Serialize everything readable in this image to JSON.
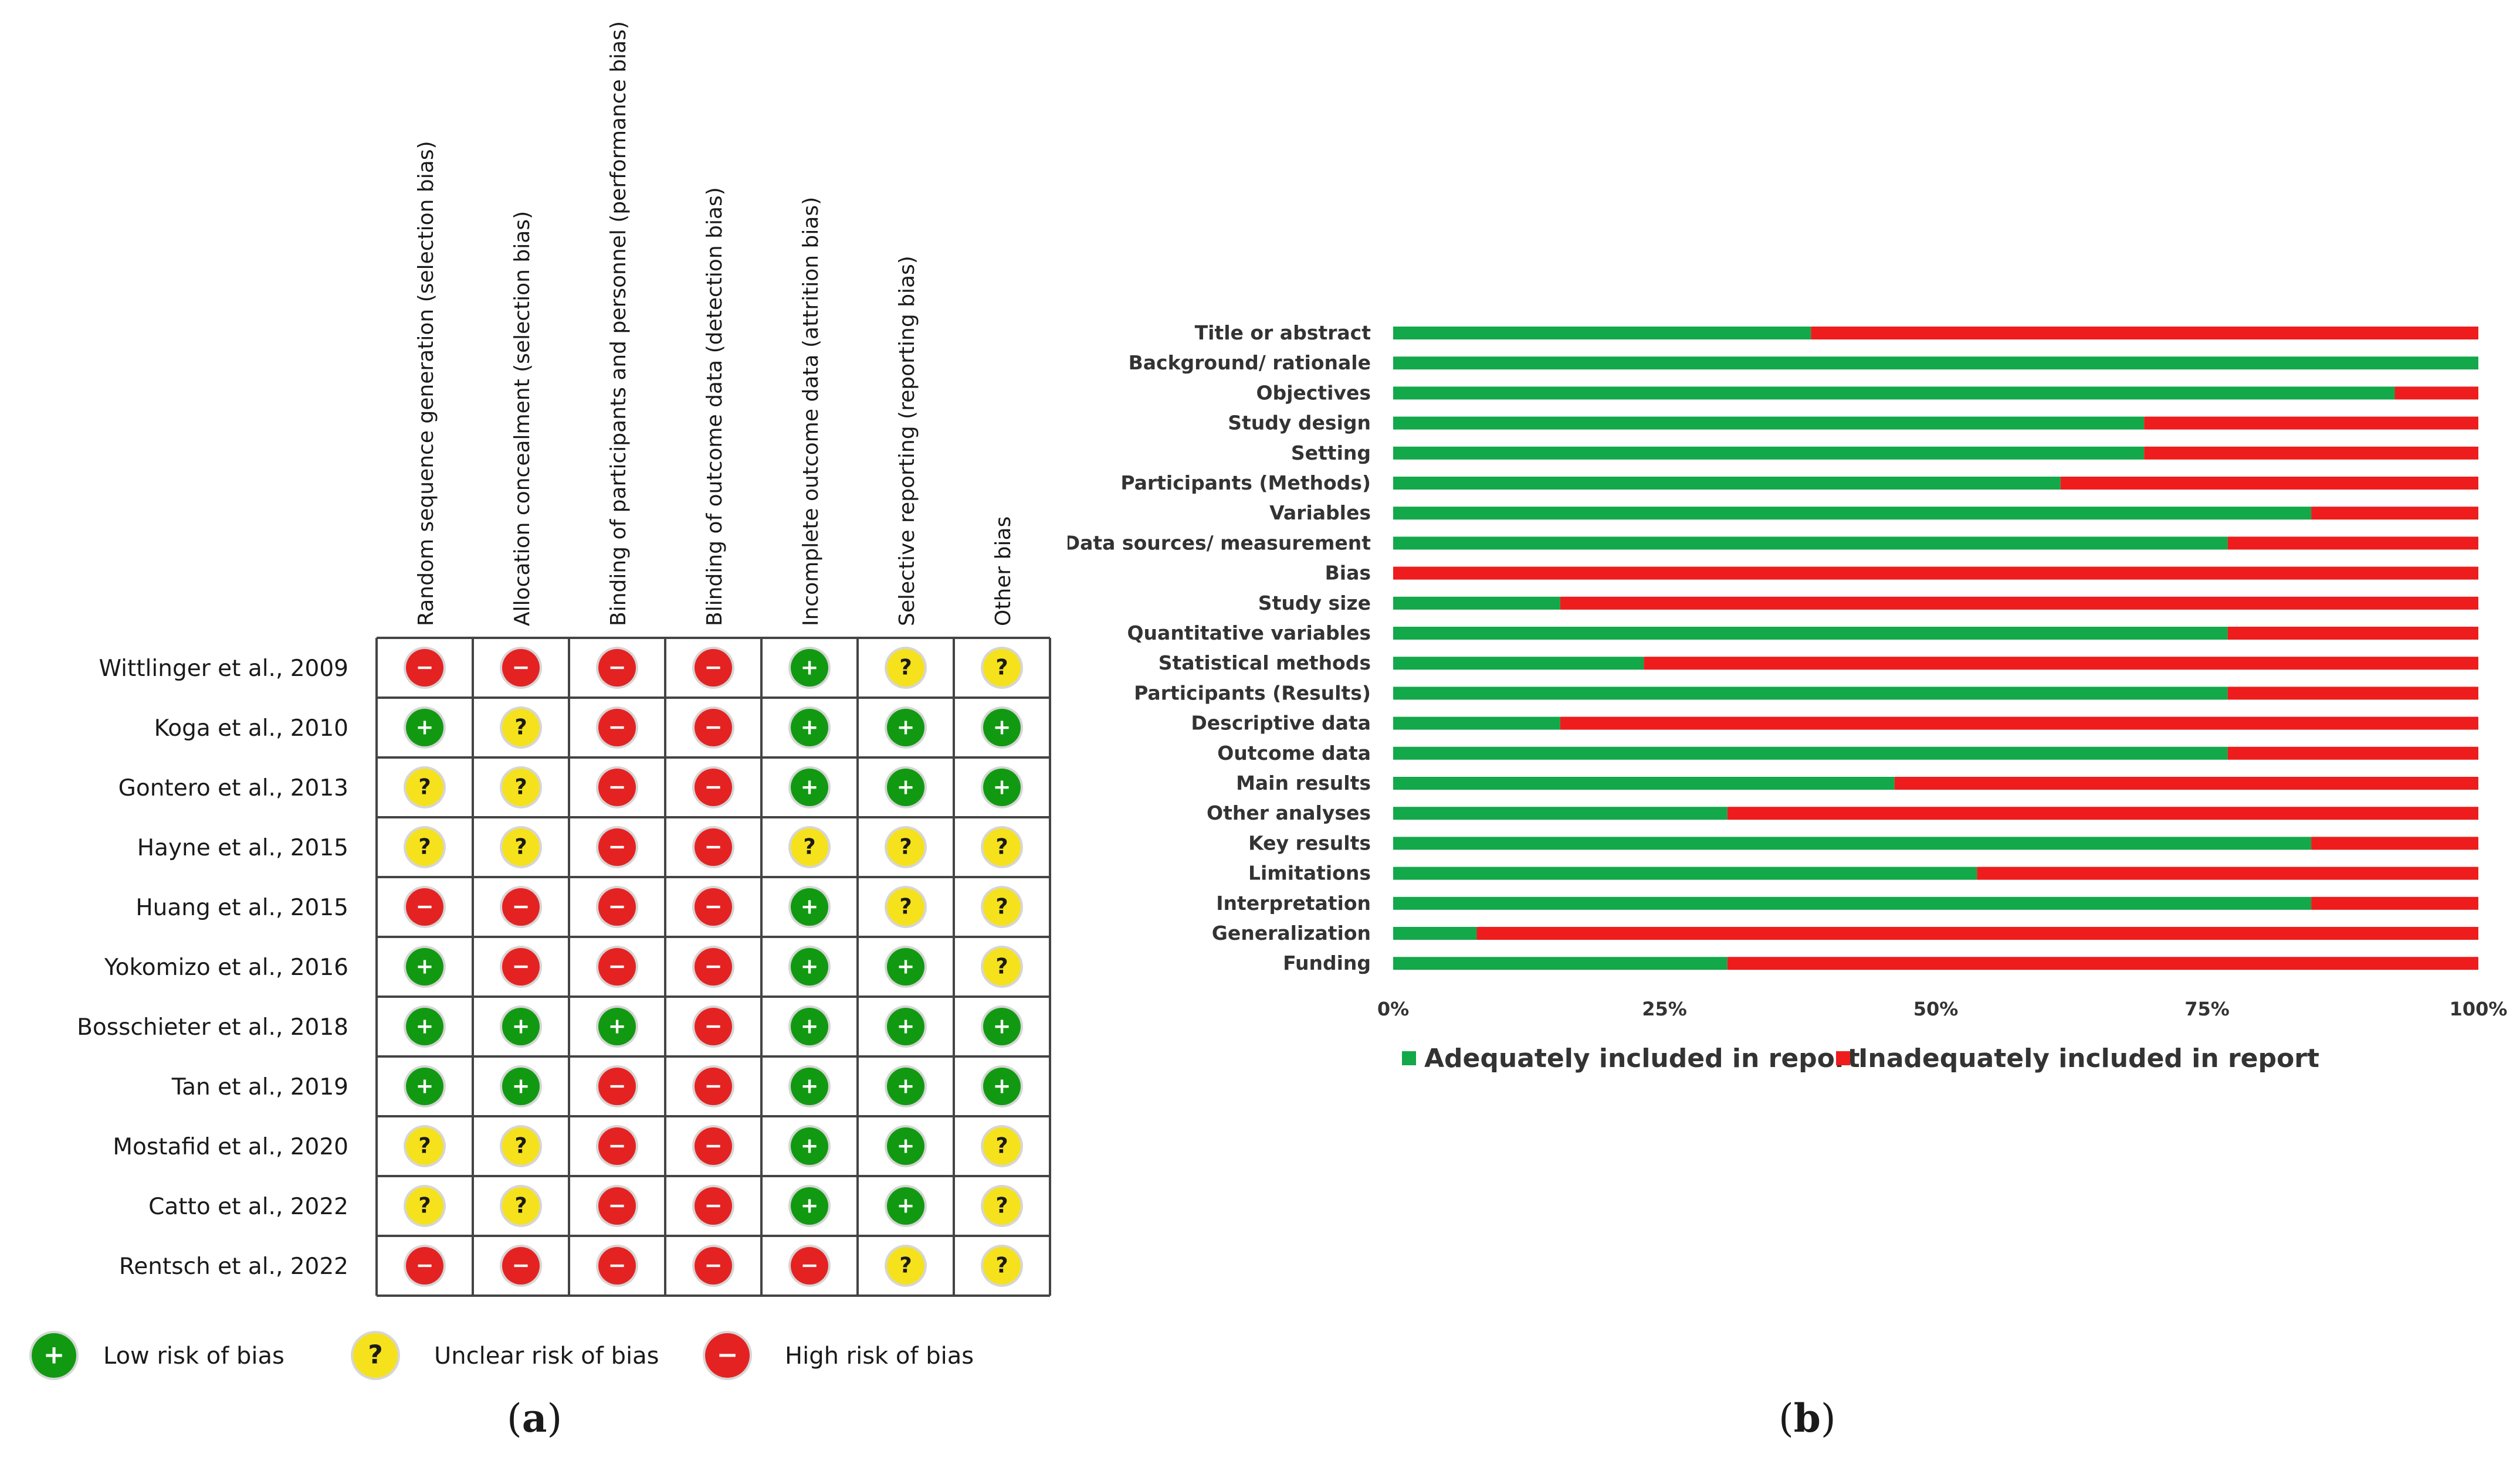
{
  "panel_a": {
    "columns": [
      "Random sequence  generation (selection bias)",
      "Allocation concealment (selection bias)",
      "Binding of participants and personnel (performance bias)",
      "Blinding of outcome data (detection bias)",
      "Incomplete outcome data (attrition bias)",
      "Selective reporting (reporting bias)",
      "Other bias"
    ],
    "studies": [
      {
        "name": "Wittlinger et al., 2009",
        "ratings": [
          "high",
          "high",
          "high",
          "high",
          "low",
          "unclear",
          "unclear"
        ]
      },
      {
        "name": "Koga et al., 2010",
        "ratings": [
          "low",
          "unclear",
          "high",
          "high",
          "low",
          "low",
          "low"
        ]
      },
      {
        "name": "Gontero et al., 2013",
        "ratings": [
          "unclear",
          "unclear",
          "high",
          "high",
          "low",
          "low",
          "low"
        ]
      },
      {
        "name": "Hayne et al., 2015",
        "ratings": [
          "unclear",
          "unclear",
          "high",
          "high",
          "unclear",
          "unclear",
          "unclear"
        ]
      },
      {
        "name": "Huang et al., 2015",
        "ratings": [
          "high",
          "high",
          "high",
          "high",
          "low",
          "unclear",
          "unclear"
        ]
      },
      {
        "name": "Yokomizo et al., 2016",
        "ratings": [
          "low",
          "high",
          "high",
          "high",
          "low",
          "low",
          "unclear"
        ]
      },
      {
        "name": "Bosschieter et al., 2018",
        "ratings": [
          "low",
          "low",
          "low",
          "high",
          "low",
          "low",
          "low"
        ]
      },
      {
        "name": "Tan et al., 2019",
        "ratings": [
          "low",
          "low",
          "high",
          "high",
          "low",
          "low",
          "low"
        ]
      },
      {
        "name": "Mostafid et al., 2020",
        "ratings": [
          "unclear",
          "unclear",
          "high",
          "high",
          "low",
          "low",
          "unclear"
        ]
      },
      {
        "name": "Catto et al., 2022",
        "ratings": [
          "unclear",
          "unclear",
          "high",
          "high",
          "low",
          "low",
          "unclear"
        ]
      },
      {
        "name": "Rentsch et al., 2022",
        "ratings": [
          "high",
          "high",
          "high",
          "high",
          "high",
          "unclear",
          "unclear"
        ]
      }
    ],
    "legend": [
      {
        "key": "low",
        "label": "Low risk of bias"
      },
      {
        "key": "unclear",
        "label": "Unclear risk of bias"
      },
      {
        "key": "high",
        "label": "High risk of bias"
      }
    ],
    "symbols": {
      "low": "+",
      "unclear": "?",
      "high": "−"
    },
    "colors": {
      "low": "#119a11",
      "unclear": "#f5e21c",
      "high": "#e52222",
      "unclear_text": "#1a1a1a"
    },
    "caption_open": "(",
    "caption_letter": "a",
    "caption_close": ")"
  },
  "chart_data": {
    "type": "bar",
    "orientation": "horizontal-stacked-100",
    "categories": [
      "Title or abstract",
      "Background/ rationale",
      "Objectives",
      "Study design",
      "Setting",
      "Participants (Methods)",
      "Variables",
      "Data sources/ measurement",
      "Bias",
      "Study size",
      "Quantitative variables",
      "Statistical methods",
      "Participants (Results)",
      "Descriptive data",
      "Outcome data",
      "Main results",
      "Other analyses",
      "Key results",
      "Limitations",
      "Interpretation",
      "Generalization",
      "Funding"
    ],
    "series": [
      {
        "name": "Adequately included in report",
        "color": "#13a84a",
        "values": [
          38.5,
          100,
          92.3,
          69.2,
          69.2,
          61.5,
          84.6,
          76.9,
          0,
          15.4,
          76.9,
          23.1,
          76.9,
          15.4,
          76.9,
          46.2,
          30.8,
          84.6,
          53.8,
          84.6,
          7.7,
          30.8
        ]
      },
      {
        "name": "Inadequately included in report",
        "color": "#ee1c1c",
        "values": [
          61.5,
          0,
          7.7,
          30.8,
          30.8,
          38.5,
          15.4,
          23.1,
          100,
          84.6,
          23.1,
          76.9,
          23.1,
          84.6,
          23.1,
          53.8,
          69.2,
          15.4,
          46.2,
          15.4,
          92.3,
          69.2
        ]
      }
    ],
    "xlim": [
      0,
      100
    ],
    "xticks": [
      "0%",
      "25%",
      "50%",
      "75%",
      "100%"
    ],
    "legend_position": "bottom",
    "title": "",
    "xlabel": "",
    "ylabel": ""
  },
  "panel_b": {
    "caption_open": "(",
    "caption_letter": "b",
    "caption_close": ")"
  }
}
